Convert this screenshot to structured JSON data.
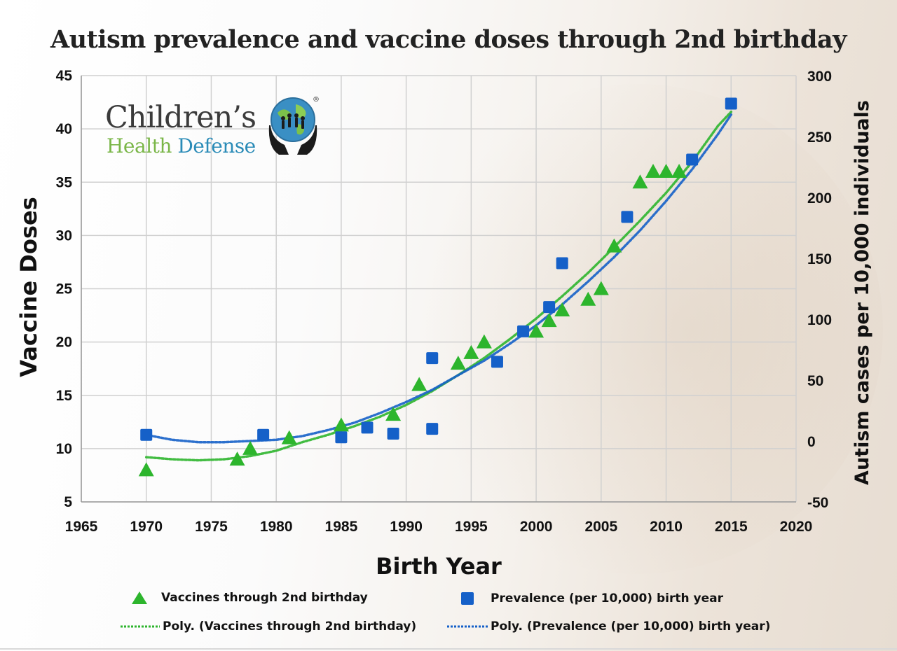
{
  "title": "Autism prevalence and vaccine doses through 2nd birthday",
  "logo": {
    "line1": "Children’s",
    "line2a": "Health",
    "line2b": "Defense",
    "reg": "®"
  },
  "colors": {
    "vaccines": "#2db52d",
    "prevalence": "#1560c8",
    "grid": "#d0d0d0"
  },
  "chart_data": {
    "type": "scatter",
    "title": "Autism prevalence and vaccine doses through 2nd birthday",
    "xlabel": "Birth Year",
    "ylabel_left": "Vaccine Doses",
    "ylabel_right": "Autism cases per 10,000 individuals",
    "xlim": [
      1965,
      2020
    ],
    "ylim_left": [
      5,
      45
    ],
    "ylim_right": [
      -50,
      300
    ],
    "x_ticks": [
      1965,
      1970,
      1975,
      1980,
      1985,
      1990,
      1995,
      2000,
      2005,
      2010,
      2015,
      2020
    ],
    "y_ticks_left": [
      5,
      10,
      15,
      20,
      25,
      30,
      35,
      40,
      45
    ],
    "y_ticks_right": [
      -50,
      0,
      50,
      100,
      150,
      200,
      250,
      300
    ],
    "grid": true,
    "series": [
      {
        "name": "Vaccines through 2nd birthday",
        "axis": "left",
        "marker": "triangle",
        "x": [
          1970,
          1977,
          1978,
          1981,
          1985,
          1989,
          1991,
          1994,
          1995,
          1996,
          2000,
          2001,
          2002,
          2004,
          2005,
          2006,
          2008,
          2009,
          2010,
          2011
        ],
        "y": [
          8,
          9,
          10,
          11,
          12.2,
          13.2,
          16,
          18,
          19,
          20,
          21,
          22,
          23,
          24,
          25,
          29,
          35,
          36,
          36,
          36
        ]
      },
      {
        "name": "Prevalence (per 10,000) birth year",
        "axis": "right",
        "marker": "square",
        "x": [
          1970,
          1979,
          1985,
          1987,
          1989,
          1992,
          1992,
          1997,
          1999,
          2001,
          2002,
          2007,
          2012,
          2015
        ],
        "y": [
          5,
          5,
          3,
          11,
          6,
          68,
          10,
          65,
          90,
          110,
          146,
          184,
          231,
          277
        ]
      },
      {
        "name": "Poly. (Vaccines through 2nd birthday)",
        "axis": "left",
        "style": "dotted-trendline",
        "x": [
          1970,
          1972,
          1974,
          1976,
          1978,
          1980,
          1982,
          1984,
          1986,
          1988,
          1990,
          1992,
          1994,
          1996,
          1998,
          2000,
          2002,
          2004,
          2006,
          2008,
          2010,
          2012,
          2014,
          2015
        ],
        "y": [
          9.2,
          9.0,
          8.9,
          9.0,
          9.3,
          9.8,
          10.6,
          11.3,
          12.1,
          13.0,
          14.1,
          15.4,
          16.9,
          18.5,
          20.3,
          22.2,
          24.3,
          26.5,
          28.9,
          31.4,
          34.0,
          36.9,
          40.3,
          41.6
        ]
      },
      {
        "name": "Poly. (Prevalence (per 10,000) birth year)",
        "axis": "right",
        "style": "dotted-trendline",
        "x": [
          1970,
          1972,
          1974,
          1976,
          1978,
          1980,
          1982,
          1984,
          1986,
          1988,
          1990,
          1992,
          1994,
          1996,
          1998,
          2000,
          2002,
          2004,
          2006,
          2008,
          2010,
          2012,
          2014,
          2015
        ],
        "y": [
          5,
          1,
          -1,
          -1,
          0,
          1,
          4,
          9,
          15,
          23,
          32,
          42,
          54,
          66,
          80,
          95,
          112,
          131,
          151,
          173,
          197,
          223,
          252,
          268
        ]
      }
    ],
    "legend": [
      "Vaccines through 2nd birthday",
      "Prevalence (per 10,000) birth year",
      "Poly. (Vaccines through 2nd birthday)",
      "Poly. (Prevalence (per 10,000) birth year)"
    ],
    "legend_position": "bottom"
  }
}
